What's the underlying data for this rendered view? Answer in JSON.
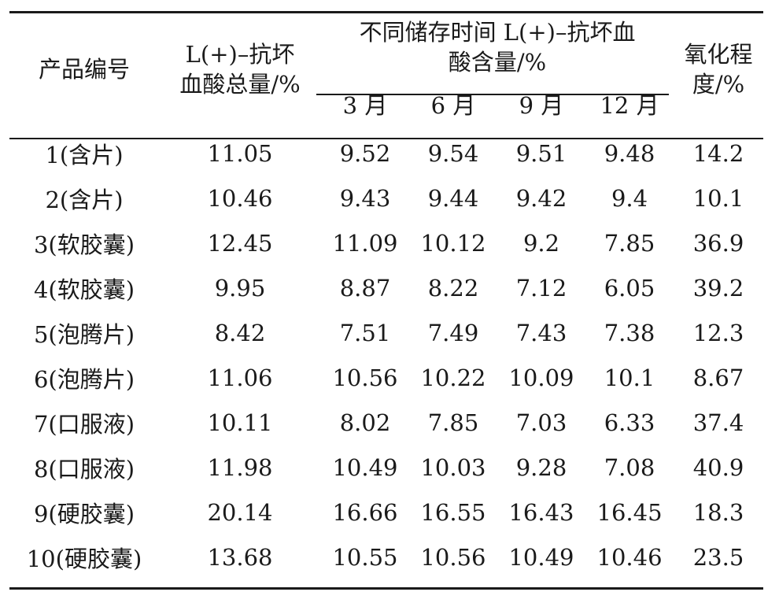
{
  "header": {
    "product_id": "产品编号",
    "total_l1": "L(+)–抗坏",
    "total_l2": "血酸总量/%",
    "storage_l1": "不同储存时间 L(+)–抗坏血",
    "storage_l2": "酸含量/%",
    "months": [
      "3 月",
      "6 月",
      "9 月",
      "12 月"
    ],
    "oxidation_l1": "氧化程",
    "oxidation_l2": "度/%"
  },
  "rows": [
    {
      "id": "1(含片)",
      "total": "11.05",
      "m3": "9.52",
      "m6": "9.54",
      "m9": "9.51",
      "m12": "9.48",
      "ox": "14.2"
    },
    {
      "id": "2(含片)",
      "total": "10.46",
      "m3": "9.43",
      "m6": "9.44",
      "m9": "9.42",
      "m12": "9.4",
      "ox": "10.1"
    },
    {
      "id": "3(软胶囊)",
      "total": "12.45",
      "m3": "11.09",
      "m6": "10.12",
      "m9": "9.2",
      "m12": "7.85",
      "ox": "36.9"
    },
    {
      "id": "4(软胶囊)",
      "total": "9.95",
      "m3": "8.87",
      "m6": "8.22",
      "m9": "7.12",
      "m12": "6.05",
      "ox": "39.2"
    },
    {
      "id": "5(泡腾片)",
      "total": "8.42",
      "m3": "7.51",
      "m6": "7.49",
      "m9": "7.43",
      "m12": "7.38",
      "ox": "12.3"
    },
    {
      "id": "6(泡腾片)",
      "total": "11.06",
      "m3": "10.56",
      "m6": "10.22",
      "m9": "10.09",
      "m12": "10.1",
      "ox": "8.67"
    },
    {
      "id": "7(口服液)",
      "total": "10.11",
      "m3": "8.02",
      "m6": "7.85",
      "m9": "7.03",
      "m12": "6.33",
      "ox": "37.4"
    },
    {
      "id": "8(口服液)",
      "total": "11.98",
      "m3": "10.49",
      "m6": "10.03",
      "m9": "9.28",
      "m12": "7.08",
      "ox": "40.9"
    },
    {
      "id": "9(硬胶囊)",
      "total": "20.14",
      "m3": "16.66",
      "m6": "16.55",
      "m9": "16.43",
      "m12": "16.45",
      "ox": "18.3"
    },
    {
      "id": "10(硬胶囊)",
      "total": "13.68",
      "m3": "10.55",
      "m6": "10.56",
      "m9": "10.49",
      "m12": "10.46",
      "ox": "23.5"
    }
  ]
}
